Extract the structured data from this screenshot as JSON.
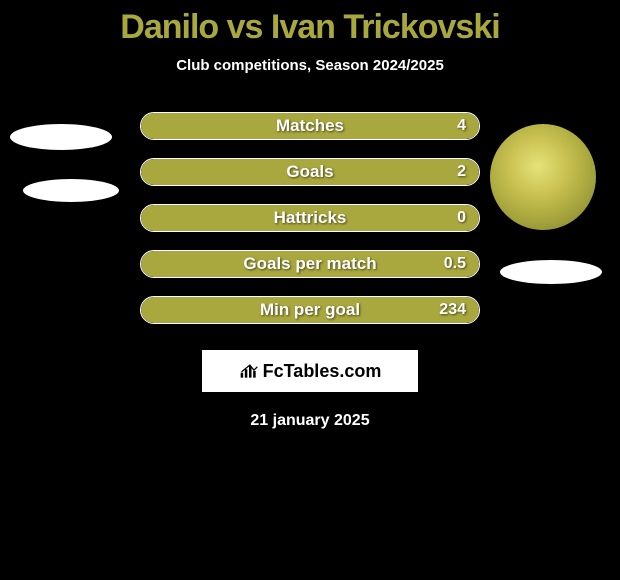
{
  "title": "Danilo vs Ivan Trickovski",
  "subtitle": "Club competitions, Season 2024/2025",
  "date": "21 january 2025",
  "watermark_text": "FcTables.com",
  "colors": {
    "background": "#000000",
    "accent": "#a9a83e",
    "bar_border": "#ffffff",
    "text": "#ffffff"
  },
  "stats": [
    {
      "label": "Matches",
      "value_right": "4",
      "fill_pct": 100,
      "fill_color": "#a9a83e"
    },
    {
      "label": "Goals",
      "value_right": "2",
      "fill_pct": 100,
      "fill_color": "#a9a83e"
    },
    {
      "label": "Hattricks",
      "value_right": "0",
      "fill_pct": 100,
      "fill_color": "#a9a83e"
    },
    {
      "label": "Goals per match",
      "value_right": "0.5",
      "fill_pct": 100,
      "fill_color": "#a9a83e"
    },
    {
      "label": "Min per goal",
      "value_right": "234",
      "fill_pct": 100,
      "fill_color": "#a9a83e"
    }
  ],
  "players": {
    "left": {
      "name": "Danilo"
    },
    "right": {
      "name": "Ivan Trickovski"
    }
  }
}
